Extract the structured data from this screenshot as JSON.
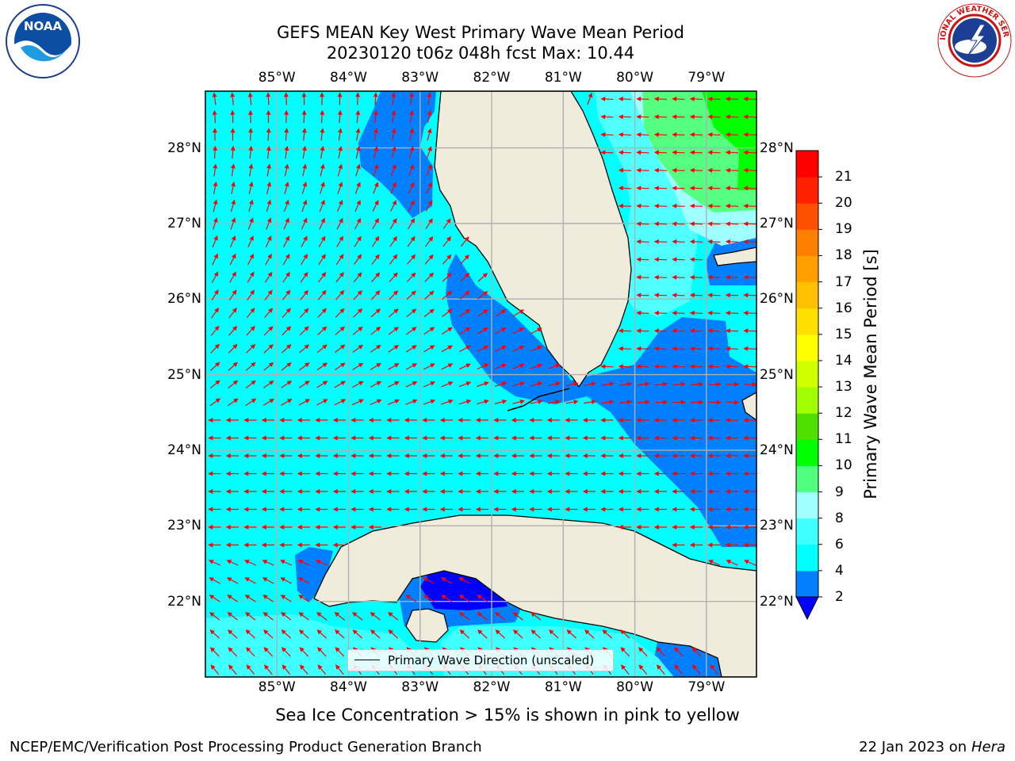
{
  "title": {
    "line1": "GEFS MEAN Key West Primary Wave Mean Period",
    "line2": "20230120 t06z 048h fcst   Max: 10.44"
  },
  "map": {
    "lon_labels": [
      "85°W",
      "84°W",
      "83°W",
      "82°W",
      "81°W",
      "80°W",
      "79°W"
    ],
    "lat_labels": [
      "28°N",
      "27°N",
      "26°N",
      "25°N",
      "24°N",
      "23°N",
      "22°N"
    ],
    "extent": {
      "lon_min": -86.0,
      "lon_max": -78.3,
      "lat_min": 21.0,
      "lat_max": 28.75
    },
    "colors": {
      "land": "#efecdc",
      "ocean_low": "#00ffff",
      "band_2_4": "#0080ff",
      "band_below_2": "#0000ff",
      "arrow": "#ff0000",
      "grid": "#b0b0b0"
    }
  },
  "legend": {
    "label": "Primary Wave Direction (unscaled)"
  },
  "colorbar": {
    "label": "Primary Wave Mean Period [s]",
    "ticks": [
      "2",
      "4",
      "6",
      "8",
      "9",
      "10",
      "11",
      "12",
      "13",
      "14",
      "15",
      "16",
      "17",
      "18",
      "19",
      "20",
      "21"
    ],
    "colors": [
      "#0080ff",
      "#00ffff",
      "#40ffff",
      "#a0ffff",
      "#50ff80",
      "#00ff00",
      "#50e000",
      "#a0ff00",
      "#d0ff00",
      "#ffff00",
      "#ffe000",
      "#ffc000",
      "#ffa000",
      "#ff8000",
      "#ff5000",
      "#ff2000",
      "#ff0000"
    ],
    "extend_color": "#0000ff"
  },
  "logos": {
    "noaa": "NOAA",
    "nws": "NATIONAL WEATHER SERVICE"
  },
  "footer": {
    "note": "Sea Ice Concentration > 15% is shown in pink to yellow",
    "credit": "NCEP/EMC/Verification Post Processing Product Generation Branch",
    "date": "22 Jan 2023 on",
    "host": "Hera"
  }
}
